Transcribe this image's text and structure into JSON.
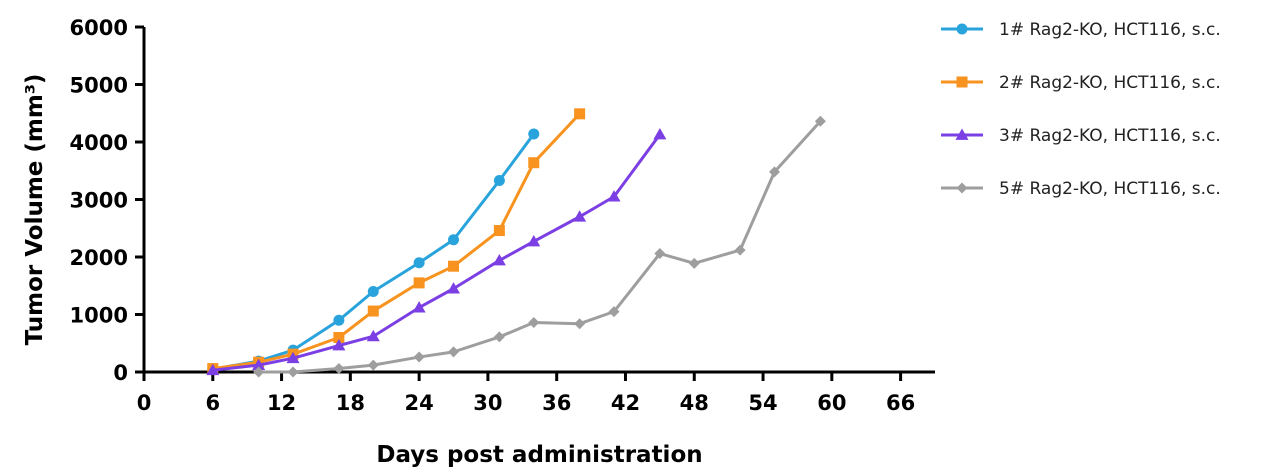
{
  "chart_data": {
    "type": "line",
    "title": "",
    "xlabel": "Days post administration",
    "ylabel": "Tumor Volume (mm³)",
    "xlim": [
      0,
      69
    ],
    "ylim": [
      0,
      6000
    ],
    "xticks": [
      0,
      6,
      12,
      18,
      24,
      30,
      36,
      42,
      48,
      54,
      60,
      66
    ],
    "yticks": [
      0,
      1000,
      2000,
      3000,
      4000,
      5000,
      6000
    ],
    "grid": false,
    "legend_position": "top-right",
    "series": [
      {
        "name": "1# Rag2-KO, HCT116, s.c.",
        "color": "#29a3dc",
        "marker": "circle",
        "x": [
          6,
          10,
          13,
          17,
          20,
          24,
          27,
          31,
          34
        ],
        "y": [
          50,
          190,
          380,
          900,
          1400,
          1900,
          2300,
          3330,
          4140
        ]
      },
      {
        "name": "2# Rag2-KO, HCT116, s.c.",
        "color": "#f7931e",
        "marker": "square",
        "x": [
          6,
          10,
          13,
          17,
          20,
          24,
          27,
          31,
          34,
          38
        ],
        "y": [
          60,
          170,
          310,
          600,
          1060,
          1550,
          1840,
          2460,
          3640,
          4490
        ]
      },
      {
        "name": "3# Rag2-KO, HCT116, s.c.",
        "color": "#7b3fe4",
        "marker": "triangle",
        "x": [
          6,
          10,
          13,
          17,
          20,
          24,
          27,
          31,
          34,
          38,
          41,
          45
        ],
        "y": [
          30,
          120,
          240,
          460,
          620,
          1120,
          1450,
          1940,
          2270,
          2700,
          3050,
          4130
        ]
      },
      {
        "name": "5# Rag2-KO, HCT116, s.c.",
        "color": "#9e9e9e",
        "marker": "diamond",
        "x": [
          10,
          13,
          17,
          20,
          24,
          27,
          31,
          34,
          38,
          41,
          45,
          48,
          52,
          55,
          59
        ],
        "y": [
          0,
          0,
          60,
          120,
          260,
          350,
          610,
          860,
          840,
          1050,
          2060,
          1890,
          2120,
          3480,
          4360
        ]
      }
    ]
  }
}
